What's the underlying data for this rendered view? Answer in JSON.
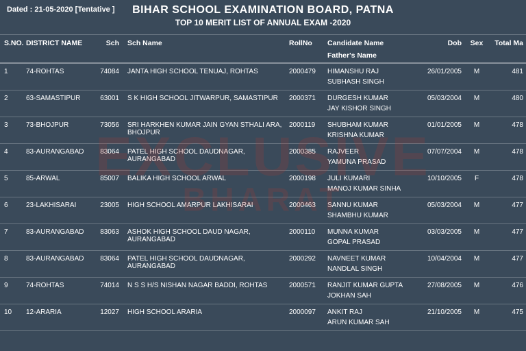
{
  "colors": {
    "background": "#3a4a5a",
    "text": "#ffffff",
    "rule": "rgba(255,255,255,0.25)",
    "watermark": "#c0392b"
  },
  "typography": {
    "title_fontsize": 16,
    "subtitle_fontsize": 12,
    "header_fontsize": 10.5,
    "body_fontsize": 10,
    "font_family": "Arial, sans-serif"
  },
  "date_line": "Dated : 21-05-2020   [Tentative ]",
  "title_main": "BIHAR SCHOOL EXAMINATION BOARD, PATNA",
  "title_sub": "TOP 10 MERIT LIST OF ANNUAL EXAM -2020",
  "watermark": {
    "line1": "EXCLUSIVE",
    "line2": "BHARAT"
  },
  "columns": {
    "sno": "S.NO.",
    "district": "DISTRICT NAME",
    "sch": "Sch",
    "sname": "Sch Name",
    "roll": "RollNo",
    "cand": "Candidate Name",
    "cand_sub": "Father's Name",
    "dob": "Dob",
    "sex": "Sex",
    "marks": "Total Ma"
  },
  "rows": [
    {
      "sno": "1",
      "district": "74-ROHTAS",
      "sch": "74084",
      "sname": "JANTA HIGH SCHOOL TENUAJ, ROHTAS",
      "roll": "2000479",
      "cand": "HIMANSHU RAJ",
      "father": "SUBHASH SINGH",
      "dob": "26/01/2005",
      "sex": "M",
      "marks": "481"
    },
    {
      "sno": "2",
      "district": "63-SAMASTIPUR",
      "sch": "63001",
      "sname": "S K HIGH SCHOOL JITWARPUR, SAMASTIPUR",
      "roll": "2000371",
      "cand": "DURGESH KUMAR",
      "father": "JAY KISHOR SINGH",
      "dob": "05/03/2004",
      "sex": "M",
      "marks": "480"
    },
    {
      "sno": "3",
      "district": "73-BHOJPUR",
      "sch": "73056",
      "sname": "SRI HARKHEN KUMAR JAIN GYAN STHALI ARA, BHOJPUR",
      "roll": "2000119",
      "cand": "SHUBHAM KUMAR",
      "father": "KRISHNA KUMAR",
      "dob": "01/01/2005",
      "sex": "M",
      "marks": "478"
    },
    {
      "sno": "4",
      "district": "83-AURANGABAD",
      "sch": "83064",
      "sname": "PATEL HIGH SCHOOL DAUDNAGAR, AURANGABAD",
      "roll": "2000385",
      "cand": "RAJVEER",
      "father": "YAMUNA PRASAD",
      "dob": "07/07/2004",
      "sex": "M",
      "marks": "478"
    },
    {
      "sno": "5",
      "district": "85-ARWAL",
      "sch": "85007",
      "sname": "BALIKA HIGH SCHOOL ARWAL",
      "roll": "2000198",
      "cand": "JULI KUMARI",
      "father": "MANOJ KUMAR SINHA",
      "dob": "10/10/2005",
      "sex": "F",
      "marks": "478"
    },
    {
      "sno": "6",
      "district": "23-LAKHISARAI",
      "sch": "23005",
      "sname": "HIGH SCHOOL AMARPUR LAKHISARAI",
      "roll": "2000463",
      "cand": "SANNU KUMAR",
      "father": "SHAMBHU  KUMAR",
      "dob": "05/03/2004",
      "sex": "M",
      "marks": "477"
    },
    {
      "sno": "7",
      "district": "83-AURANGABAD",
      "sch": "83063",
      "sname": "ASHOK HIGH SCHOOL DAUD NAGAR, AURANGABAD",
      "roll": "2000110",
      "cand": "MUNNA KUMAR",
      "father": "GOPAL PRASAD",
      "dob": "03/03/2005",
      "sex": "M",
      "marks": "477"
    },
    {
      "sno": "8",
      "district": "83-AURANGABAD",
      "sch": "83064",
      "sname": "PATEL HIGH SCHOOL DAUDNAGAR, AURANGABAD",
      "roll": "2000292",
      "cand": "NAVNEET KUMAR",
      "father": "NANDLAL SINGH",
      "dob": "10/04/2004",
      "sex": "M",
      "marks": "477"
    },
    {
      "sno": "9",
      "district": "74-ROHTAS",
      "sch": "74014",
      "sname": "N S S H/S NISHAN NAGAR BADDI, ROHTAS",
      "roll": "2000571",
      "cand": "RANJIT KUMAR GUPTA",
      "father": "JOKHAN SAH",
      "dob": "27/08/2005",
      "sex": "M",
      "marks": "476"
    },
    {
      "sno": "10",
      "district": "12-ARARIA",
      "sch": "12027",
      "sname": "HIGH SCHOOL ARARIA",
      "roll": "2000097",
      "cand": "ANKIT RAJ",
      "father": "ARUN KUMAR SAH",
      "dob": "21/10/2005",
      "sex": "M",
      "marks": "475"
    }
  ]
}
